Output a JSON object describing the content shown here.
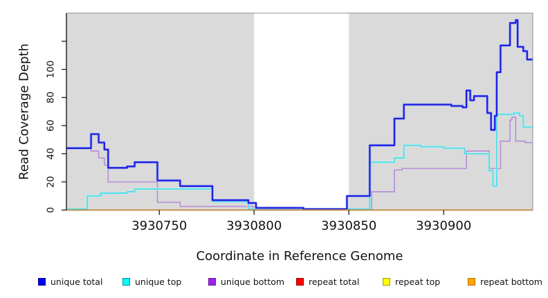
{
  "chart_data": {
    "type": "line",
    "step": true,
    "title": "",
    "xlabel": "Coordinate in Reference Genome",
    "ylabel": "Read Coverage Depth",
    "xlim": [
      3930701,
      3930947
    ],
    "ylim": [
      0,
      140
    ],
    "grid": false,
    "legend_position": "bottom",
    "panel_bg": "#dadada",
    "axis_color": "#1a1a1a",
    "panel_border": "#909090",
    "gap_band": {
      "from": 3930800,
      "to": 3930850,
      "color": "#ffffff"
    },
    "x_ticks": [
      {
        "value": 3930750,
        "label": "3930750"
      },
      {
        "value": 3930800,
        "label": "3930800"
      },
      {
        "value": 3930850,
        "label": "3930850"
      },
      {
        "value": 3930900,
        "label": "3930900"
      }
    ],
    "y_ticks": [
      {
        "value": 0,
        "label": "0"
      },
      {
        "value": 20,
        "label": "20"
      },
      {
        "value": 40,
        "label": "40"
      },
      {
        "value": 60,
        "label": "60"
      },
      {
        "value": 80,
        "label": "80"
      },
      {
        "value": 100,
        "label": "100"
      },
      {
        "value": 120,
        "label": ""
      }
    ],
    "draw_order": [
      "repeat total",
      "repeat top",
      "unique bottom",
      "unique top",
      "unique total",
      "repeat bottom"
    ],
    "series": [
      {
        "name": "unique total",
        "color": "#1e1ee2",
        "halo": "#9db2f0",
        "width": 2.3,
        "legend_fill": "#0000ee",
        "legend_border": "#00008b",
        "points": [
          [
            3930701,
            44
          ],
          [
            3930714,
            54
          ],
          [
            3930718,
            48
          ],
          [
            3930721,
            43
          ],
          [
            3930723,
            30
          ],
          [
            3930733,
            31
          ],
          [
            3930737,
            34
          ],
          [
            3930749,
            21
          ],
          [
            3930761,
            17
          ],
          [
            3930778,
            7
          ],
          [
            3930797,
            5
          ],
          [
            3930801,
            1.5
          ],
          [
            3930826,
            0.7
          ],
          [
            3930849,
            10
          ],
          [
            3930861,
            46
          ],
          [
            3930874,
            65
          ],
          [
            3930879,
            75
          ],
          [
            3930904,
            74
          ],
          [
            3930910,
            73
          ],
          [
            3930912,
            85
          ],
          [
            3930914,
            78
          ],
          [
            3930916,
            81
          ],
          [
            3930923,
            69
          ],
          [
            3930925,
            57
          ],
          [
            3930927,
            67
          ],
          [
            3930928,
            98
          ],
          [
            3930930,
            117
          ],
          [
            3930935,
            133
          ],
          [
            3930938,
            135
          ],
          [
            3930939,
            116
          ],
          [
            3930942,
            113
          ],
          [
            3930944,
            107
          ]
        ]
      },
      {
        "name": "unique top",
        "color": "#55dde6",
        "halo": "#bdf2f4",
        "width": 1.9,
        "legend_fill": "#00ffff",
        "legend_border": "#008b8b",
        "points": [
          [
            3930701,
            0.7
          ],
          [
            3930712,
            10
          ],
          [
            3930719,
            12
          ],
          [
            3930733,
            13
          ],
          [
            3930737,
            15
          ],
          [
            3930778,
            6
          ],
          [
            3930797,
            0.7
          ],
          [
            3930861,
            34
          ],
          [
            3930874,
            37
          ],
          [
            3930879,
            46
          ],
          [
            3930888,
            45
          ],
          [
            3930900,
            44
          ],
          [
            3930911,
            40
          ],
          [
            3930924,
            28
          ],
          [
            3930926,
            17
          ],
          [
            3930928,
            68
          ],
          [
            3930937,
            69
          ],
          [
            3930940,
            67
          ],
          [
            3930942,
            59
          ]
        ]
      },
      {
        "name": "unique bottom",
        "color": "#b98fd6",
        "halo": "",
        "width": 1.7,
        "legend_fill": "#a020f0",
        "legend_border": "#6a1b9a",
        "points": [
          [
            3930701,
            44
          ],
          [
            3930714,
            42
          ],
          [
            3930718,
            37
          ],
          [
            3930721,
            32
          ],
          [
            3930723,
            20
          ],
          [
            3930749,
            5.5
          ],
          [
            3930761,
            2.5
          ],
          [
            3930800,
            0.3
          ],
          [
            3930862,
            13
          ],
          [
            3930874,
            28.5
          ],
          [
            3930878,
            29.5
          ],
          [
            3930912,
            42
          ],
          [
            3930924,
            29.5
          ],
          [
            3930930,
            49
          ],
          [
            3930935,
            64
          ],
          [
            3930936,
            66
          ],
          [
            3930938,
            49
          ],
          [
            3930943,
            48
          ]
        ]
      },
      {
        "name": "repeat total",
        "color": "#d93030",
        "halo": "",
        "width": 1.5,
        "legend_fill": "#ff0000",
        "legend_border": "#8b0000",
        "points": [
          [
            3930701,
            0
          ]
        ]
      },
      {
        "name": "repeat top",
        "color": "#ebeb00",
        "halo": "",
        "width": 1.5,
        "legend_fill": "#ffff00",
        "legend_border": "#999900",
        "points": [
          [
            3930701,
            0
          ]
        ]
      },
      {
        "name": "repeat bottom",
        "color": "#ff9400",
        "halo": "",
        "width": 2,
        "legend_fill": "#ffa500",
        "legend_border": "#b36b00",
        "points": [
          [
            3930701,
            0
          ]
        ]
      }
    ]
  }
}
